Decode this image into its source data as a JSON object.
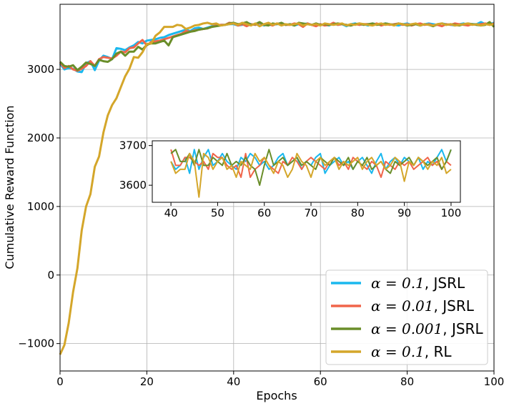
{
  "chart_data": [
    {
      "type": "line",
      "xlabel": "Epochs",
      "ylabel": "Cumulative Reward Function",
      "xlim": [
        0,
        100
      ],
      "ylim": [
        -1400,
        3950
      ],
      "xticks": [
        0,
        20,
        40,
        60,
        80,
        100
      ],
      "xtick_labels": [
        "0",
        "20",
        "40",
        "60",
        "80",
        "100"
      ],
      "yticks": [
        -1000,
        0,
        1000,
        2000,
        3000
      ],
      "ytick_labels": [
        "−1000",
        "0",
        "1000",
        "2000",
        "3000"
      ],
      "grid": true,
      "legend_position": "lower-right",
      "series": [
        {
          "name_prefix": "α = 0.1",
          "name_suffix": ", JSRL",
          "color": "#1ab8ee",
          "values": [
            3080,
            3000,
            3020,
            3010,
            2970,
            2960,
            3090,
            3120,
            2990,
            3130,
            3200,
            3180,
            3150,
            3310,
            3300,
            3280,
            3320,
            3350,
            3400,
            3380,
            3420,
            3430,
            3440,
            3460,
            3470,
            3500,
            3520,
            3540,
            3560,
            3580,
            3560,
            3600,
            3610,
            3590,
            3610,
            3630,
            3640,
            3650,
            3650,
            3660,
            3660,
            3640,
            3650,
            3680,
            3660,
            3650,
            3670,
            3640,
            3660,
            3650,
            3660,
            3670,
            3650,
            3660,
            3640,
            3660,
            3660,
            3670,
            3650,
            3660,
            3650,
            3650,
            3640,
            3670,
            3650,
            3660,
            3630,
            3660,
            3670,
            3650,
            3660,
            3640,
            3670,
            3660,
            3650,
            3670,
            3660,
            3650,
            3640,
            3660,
            3670,
            3650,
            3660,
            3640,
            3660,
            3670,
            3660,
            3650,
            3670,
            3660,
            3650,
            3640,
            3660,
            3670,
            3650,
            3660,
            3660,
            3690,
            3660,
            3660,
            3680
          ]
        },
        {
          "name_prefix": "α = 0.01",
          "name_suffix": ", JSRL",
          "color": "#f0654a",
          "values": [
            3100,
            3020,
            3050,
            3000,
            2980,
            3010,
            3050,
            3120,
            3050,
            3150,
            3180,
            3170,
            3160,
            3200,
            3260,
            3250,
            3310,
            3320,
            3380,
            3430,
            3350,
            3400,
            3410,
            3420,
            3440,
            3460,
            3480,
            3500,
            3520,
            3560,
            3550,
            3570,
            3580,
            3590,
            3600,
            3620,
            3640,
            3650,
            3650,
            3680,
            3670,
            3640,
            3660,
            3630,
            3660,
            3650,
            3680,
            3650,
            3660,
            3640,
            3670,
            3660,
            3650,
            3650,
            3670,
            3660,
            3620,
            3670,
            3650,
            3630,
            3660,
            3640,
            3650,
            3680,
            3650,
            3660,
            3650,
            3640,
            3660,
            3650,
            3660,
            3660,
            3650,
            3670,
            3640,
            3660,
            3650,
            3660,
            3670,
            3650,
            3660,
            3640,
            3660,
            3670,
            3650,
            3660,
            3640,
            3650,
            3630,
            3660,
            3650,
            3670,
            3660,
            3650,
            3640,
            3660,
            3650,
            3660,
            3670,
            3650,
            3670
          ]
        },
        {
          "name_prefix": "α = 0.001",
          "name_suffix": ", JSRL",
          "color": "#6a8e2a",
          "values": [
            3110,
            3050,
            3040,
            3060,
            2990,
            3040,
            3100,
            3080,
            3050,
            3140,
            3120,
            3110,
            3150,
            3230,
            3260,
            3200,
            3260,
            3260,
            3330,
            3290,
            3360,
            3380,
            3380,
            3400,
            3420,
            3350,
            3470,
            3490,
            3510,
            3530,
            3550,
            3560,
            3580,
            3590,
            3600,
            3620,
            3630,
            3640,
            3650,
            3670,
            3680,
            3660,
            3670,
            3690,
            3650,
            3660,
            3690,
            3650,
            3640,
            3670,
            3660,
            3680,
            3650,
            3660,
            3640,
            3680,
            3670,
            3660,
            3650,
            3670,
            3650,
            3660,
            3650,
            3660,
            3670,
            3660,
            3650,
            3640,
            3660,
            3670,
            3650,
            3660,
            3670,
            3650,
            3660,
            3670,
            3660,
            3650,
            3670,
            3660,
            3640,
            3650,
            3660,
            3640,
            3660,
            3650,
            3630,
            3660,
            3670,
            3650,
            3660,
            3650,
            3640,
            3660,
            3670,
            3660,
            3650,
            3640,
            3650,
            3690,
            3620
          ]
        },
        {
          "name_prefix": "α = 0.1",
          "name_suffix": ", RL",
          "color": "#d4a62a",
          "values": [
            -1160,
            -1020,
            -700,
            -250,
            100,
            650,
            1000,
            1180,
            1580,
            1730,
            2080,
            2330,
            2480,
            2580,
            2740,
            2900,
            3010,
            3180,
            3170,
            3250,
            3370,
            3380,
            3490,
            3540,
            3620,
            3620,
            3620,
            3650,
            3640,
            3590,
            3610,
            3640,
            3650,
            3670,
            3680,
            3660,
            3670,
            3640,
            3650,
            3660,
            3670,
            3650,
            3680,
            3660,
            3640,
            3670,
            3630,
            3660,
            3680,
            3650,
            3670,
            3640,
            3660,
            3650,
            3660,
            3670,
            3640,
            3660,
            3650,
            3660,
            3640,
            3670,
            3660,
            3650,
            3660,
            3670,
            3640,
            3660,
            3650,
            3670,
            3660,
            3650,
            3640,
            3660,
            3670,
            3650,
            3660,
            3640,
            3670,
            3660,
            3650,
            3660,
            3670,
            3640,
            3660,
            3650,
            3640,
            3660,
            3670,
            3650,
            3660,
            3640,
            3650,
            3660,
            3670,
            3650,
            3660,
            3640,
            3660,
            3650,
            3660
          ]
        }
      ]
    },
    {
      "type": "line",
      "role": "inset",
      "xlim": [
        36,
        102
      ],
      "ylim": [
        3557,
        3712
      ],
      "xticks": [
        40,
        50,
        60,
        70,
        80,
        90,
        100
      ],
      "xtick_labels": [
        "40",
        "50",
        "60",
        "70",
        "80",
        "90",
        "100"
      ],
      "yticks": [
        3600,
        3700
      ],
      "ytick_labels": [
        "3600",
        "3700"
      ],
      "x_start": 40,
      "series": [
        {
          "color": "#1ab8ee",
          "values": [
            3660,
            3640,
            3650,
            3670,
            3630,
            3690,
            3640,
            3670,
            3690,
            3650,
            3660,
            3680,
            3660,
            3650,
            3640,
            3670,
            3660,
            3680,
            3670,
            3650,
            3660,
            3640,
            3650,
            3670,
            3680,
            3650,
            3660,
            3670,
            3640,
            3660,
            3650,
            3670,
            3680,
            3630,
            3650,
            3660,
            3670,
            3650,
            3660,
            3640,
            3660,
            3670,
            3650,
            3630,
            3660,
            3680,
            3640,
            3660,
            3670,
            3650,
            3670,
            3660,
            3650,
            3670,
            3640,
            3660,
            3650,
            3670,
            3690,
            3660,
            3690
          ]
        },
        {
          "color": "#f0654a",
          "values": [
            3690,
            3650,
            3650,
            3670,
            3670,
            3660,
            3650,
            3660,
            3640,
            3680,
            3670,
            3670,
            3650,
            3640,
            3650,
            3620,
            3680,
            3620,
            3640,
            3650,
            3670,
            3650,
            3640,
            3630,
            3660,
            3650,
            3670,
            3660,
            3640,
            3660,
            3670,
            3660,
            3650,
            3640,
            3660,
            3670,
            3650,
            3660,
            3640,
            3670,
            3660,
            3650,
            3640,
            3660,
            3650,
            3620,
            3660,
            3650,
            3640,
            3660,
            3650,
            3660,
            3640,
            3650,
            3660,
            3670,
            3650,
            3660,
            3640,
            3660,
            3650
          ]
        },
        {
          "color": "#6a8e2a",
          "values": [
            3680,
            3690,
            3660,
            3660,
            3680,
            3650,
            3690,
            3650,
            3650,
            3670,
            3660,
            3650,
            3680,
            3650,
            3660,
            3650,
            3670,
            3650,
            3640,
            3600,
            3650,
            3690,
            3650,
            3660,
            3670,
            3650,
            3660,
            3670,
            3650,
            3660,
            3650,
            3640,
            3670,
            3660,
            3650,
            3670,
            3660,
            3650,
            3670,
            3640,
            3660,
            3650,
            3670,
            3640,
            3650,
            3660,
            3640,
            3630,
            3660,
            3650,
            3660,
            3670,
            3650,
            3670,
            3660,
            3650,
            3660,
            3670,
            3640,
            3660,
            3690
          ]
        },
        {
          "color": "#d4a62a",
          "values": [
            3660,
            3630,
            3640,
            3640,
            3680,
            3660,
            3570,
            3680,
            3670,
            3640,
            3660,
            3670,
            3640,
            3650,
            3620,
            3660,
            3650,
            3640,
            3680,
            3660,
            3670,
            3650,
            3630,
            3660,
            3650,
            3620,
            3640,
            3680,
            3660,
            3650,
            3620,
            3660,
            3670,
            3650,
            3660,
            3670,
            3640,
            3660,
            3650,
            3660,
            3670,
            3640,
            3660,
            3670,
            3650,
            3660,
            3640,
            3650,
            3670,
            3660,
            3610,
            3660,
            3650,
            3670,
            3660,
            3640,
            3660,
            3650,
            3670,
            3630,
            3640
          ]
        }
      ]
    }
  ]
}
